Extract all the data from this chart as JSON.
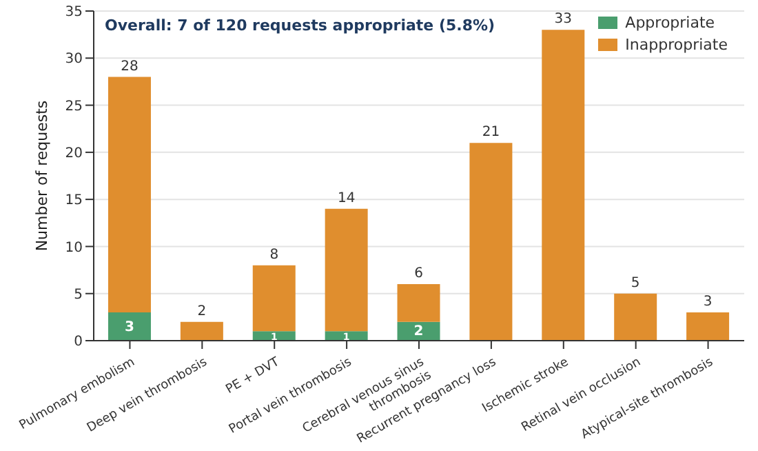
{
  "chart_data": {
    "type": "bar",
    "stacked": true,
    "categories": [
      "Pulmonary embolism",
      "Deep vein thrombosis",
      "PE + DVT",
      "Portal vein thrombosis",
      "Cerebral venous sinus thrombosis",
      "Recurrent pregnancy loss",
      "Ischemic stroke",
      "Retinal vein occlusion",
      "Atypical-site thrombosis"
    ],
    "series": [
      {
        "name": "Appropriate",
        "color": "#4a9e6e",
        "values": [
          3,
          0,
          1,
          1,
          2,
          0,
          0,
          0,
          0
        ],
        "value_labels": [
          "3",
          null,
          "1",
          "1",
          "2",
          null,
          null,
          null,
          null
        ]
      },
      {
        "name": "Inappropriate",
        "color": "#e08e2e",
        "values": [
          25,
          2,
          7,
          13,
          4,
          21,
          33,
          5,
          3
        ]
      }
    ],
    "totals": [
      "28",
      "2",
      "8",
      "14",
      "6",
      "21",
      "33",
      "5",
      "3"
    ],
    "ylabel": "Number of requests",
    "ylim": [
      0,
      35
    ],
    "yticks": [
      0,
      5,
      10,
      15,
      20,
      25,
      30,
      35
    ],
    "grid": "y",
    "legend": "top right",
    "annotations": [
      "Overall: 7 of 120 requests appropriate (5.8%)"
    ]
  }
}
